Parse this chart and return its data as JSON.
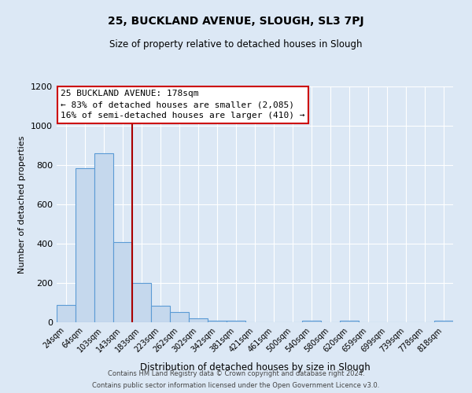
{
  "title": "25, BUCKLAND AVENUE, SLOUGH, SL3 7PJ",
  "subtitle": "Size of property relative to detached houses in Slough",
  "xlabel": "Distribution of detached houses by size in Slough",
  "ylabel": "Number of detached properties",
  "categories": [
    "24sqm",
    "64sqm",
    "103sqm",
    "143sqm",
    "183sqm",
    "223sqm",
    "262sqm",
    "302sqm",
    "342sqm",
    "381sqm",
    "421sqm",
    "461sqm",
    "500sqm",
    "540sqm",
    "580sqm",
    "620sqm",
    "659sqm",
    "699sqm",
    "739sqm",
    "778sqm",
    "818sqm"
  ],
  "values": [
    90,
    785,
    860,
    410,
    200,
    85,
    52,
    22,
    10,
    10,
    0,
    0,
    0,
    10,
    0,
    10,
    0,
    0,
    0,
    0,
    10
  ],
  "bar_color": "#c5d8ed",
  "bar_edge_color": "#5b9bd5",
  "vline_x": 3.5,
  "vline_color": "#aa0000",
  "annotation_title": "25 BUCKLAND AVENUE: 178sqm",
  "annotation_line1": "← 83% of detached houses are smaller (2,085)",
  "annotation_line2": "16% of semi-detached houses are larger (410) →",
  "annotation_box_color": "white",
  "annotation_box_edge": "#cc0000",
  "footer_line1": "Contains HM Land Registry data © Crown copyright and database right 2024.",
  "footer_line2": "Contains public sector information licensed under the Open Government Licence v3.0.",
  "background_color": "#dce8f5",
  "plot_bg_color": "#dce8f5",
  "ylim": [
    0,
    1200
  ],
  "yticks": [
    0,
    200,
    400,
    600,
    800,
    1000,
    1200
  ]
}
